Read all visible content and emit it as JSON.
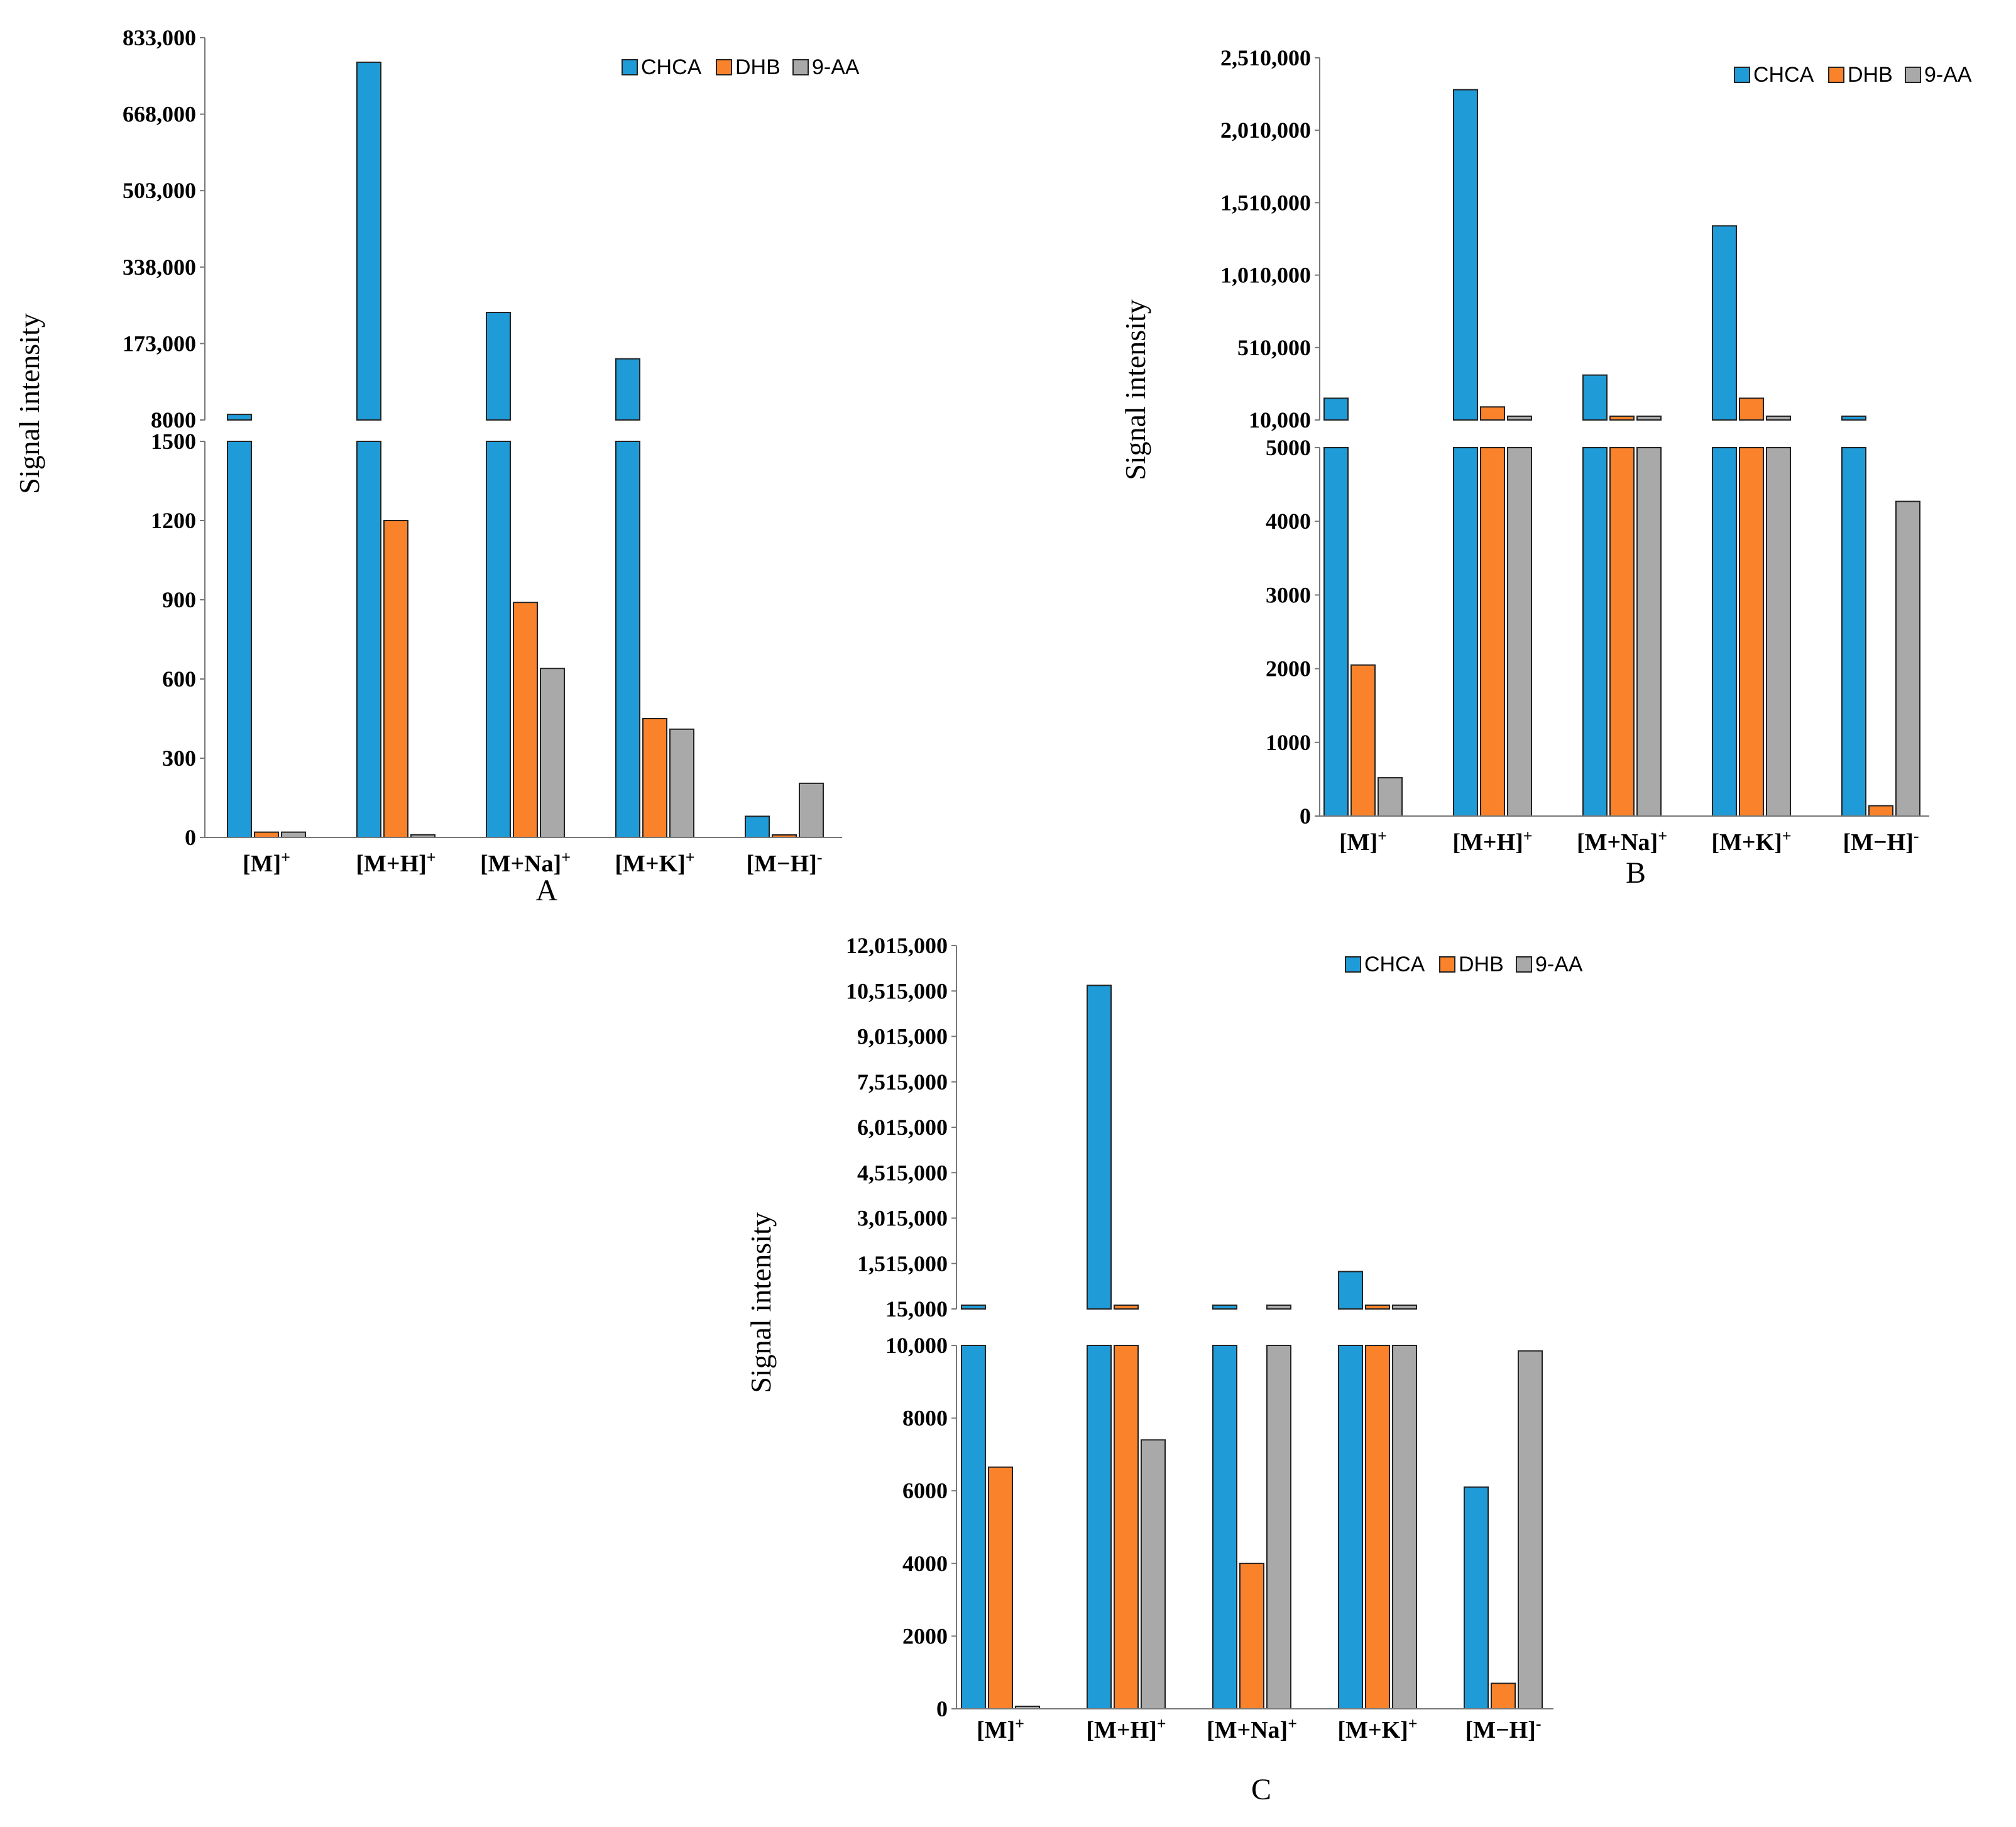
{
  "colors": {
    "CHCA": "#1f9bd7",
    "DHB": "#f9822a",
    "9-AA": "#a9a9a9"
  },
  "chart_data": [
    {
      "type": "bar",
      "panel_label": "A",
      "ylabel": "Signal intensity",
      "legend": [
        "CHCA",
        "DHB",
        "9-AA"
      ],
      "categories": [
        {
          "base": "[M]",
          "charge": "+"
        },
        {
          "base": "[M+H]",
          "charge": "+"
        },
        {
          "base": "[M+Na]",
          "charge": "+"
        },
        {
          "base": "[M+K]",
          "charge": "+"
        },
        {
          "base": "[M−H]",
          "charge": "-"
        }
      ],
      "series": [
        {
          "name": "CHCA",
          "values": [
            20000,
            780000,
            240000,
            140000,
            80
          ]
        },
        {
          "name": "DHB",
          "values": [
            20,
            1200,
            890,
            450,
            0
          ]
        },
        {
          "name": "9-AA",
          "values": [
            20,
            10,
            640,
            410,
            205
          ]
        }
      ],
      "lower_axis": {
        "range": [
          0,
          1500
        ],
        "ticks": [
          0,
          300,
          600,
          900,
          1200,
          1500
        ],
        "tick_labels": [
          "0",
          "300",
          "600",
          "900",
          "1200",
          "1500"
        ]
      },
      "upper_axis": {
        "range": [
          8000,
          833000
        ],
        "ticks": [
          8000,
          173000,
          338000,
          503000,
          668000,
          833000
        ],
        "tick_labels": [
          "8000",
          "173,000",
          "338,000",
          "503,000",
          "668,000",
          "833,000"
        ]
      }
    },
    {
      "type": "bar",
      "panel_label": "B",
      "ylabel": "Signal intensity",
      "legend": [
        "CHCA",
        "DHB",
        "9-AA"
      ],
      "categories": [
        {
          "base": "[M]",
          "charge": "+"
        },
        {
          "base": "[M+H]",
          "charge": "+"
        },
        {
          "base": "[M+Na]",
          "charge": "+"
        },
        {
          "base": "[M+K]",
          "charge": "+"
        },
        {
          "base": "[M−H]",
          "charge": "-"
        }
      ],
      "series": [
        {
          "name": "CHCA",
          "values": [
            160000,
            2290000,
            320000,
            1350000,
            5200
          ]
        },
        {
          "name": "DHB",
          "values": [
            2050,
            100000,
            30000,
            160000,
            140
          ]
        },
        {
          "name": "9-AA",
          "values": [
            520,
            20000,
            10000,
            12000,
            4270
          ]
        }
      ],
      "lower_axis": {
        "range": [
          0,
          5000
        ],
        "ticks": [
          0,
          1000,
          2000,
          3000,
          4000,
          5000
        ],
        "tick_labels": [
          "0",
          "1000",
          "2000",
          "3000",
          "4000",
          "5000"
        ]
      },
      "upper_axis": {
        "range": [
          10000,
          2510000
        ],
        "ticks": [
          10000,
          510000,
          1010000,
          1510000,
          2010000,
          2510000
        ],
        "tick_labels": [
          "10,000",
          "510,000",
          "1,010,000",
          "1,510,000",
          "2,010,000",
          "2,510,000"
        ]
      }
    },
    {
      "type": "bar",
      "panel_label": "C",
      "ylabel": "Signal intensity",
      "legend": [
        "CHCA",
        "DHB",
        "9-AA"
      ],
      "categories": [
        {
          "base": "[M]",
          "charge": "+"
        },
        {
          "base": "[M+H]",
          "charge": "+"
        },
        {
          "base": "[M+Na]",
          "charge": "+"
        },
        {
          "base": "[M+K]",
          "charge": "+"
        },
        {
          "base": "[M−H]",
          "charge": "-"
        }
      ],
      "series": [
        {
          "name": "CHCA",
          "values": [
            50000,
            10700000,
            50000,
            1250000,
            6100
          ]
        },
        {
          "name": "DHB",
          "values": [
            6650,
            125000,
            4000,
            17000,
            700
          ]
        },
        {
          "name": "9-AA",
          "values": [
            60,
            7400,
            12000,
            11000,
            9850
          ]
        }
      ],
      "lower_axis": {
        "range": [
          0,
          10000
        ],
        "ticks": [
          0,
          2000,
          4000,
          6000,
          8000,
          10000
        ],
        "tick_labels": [
          "0",
          "2000",
          "4000",
          "6000",
          "8000",
          "10,000"
        ]
      },
      "upper_axis": {
        "range": [
          15000,
          12015000
        ],
        "ticks": [
          15000,
          1515000,
          3015000,
          4515000,
          6015000,
          7515000,
          9015000,
          10515000,
          12015000
        ],
        "tick_labels": [
          "15,000",
          "1,515,000",
          "3,015,000",
          "4,515,000",
          "6,015,000",
          "7,515,000",
          "9,015,000",
          "10,515,000",
          "12,015,000"
        ]
      }
    }
  ]
}
